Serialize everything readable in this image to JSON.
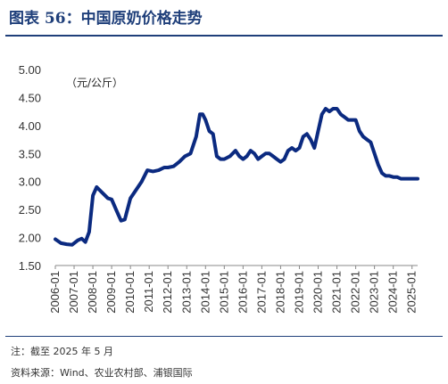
{
  "header": {
    "title": "图表 56：中国原奶价格走势"
  },
  "notes": {
    "note": "注：截至 2025 年 5 月",
    "source": "资料来源：Wind、农业农村部、浦银国际"
  },
  "colors": {
    "line": "#0b2a80",
    "title": "#1f3f7a",
    "axis": "#888888"
  },
  "chart_data": {
    "type": "line",
    "title": "",
    "unit_label": "（元/公斤）",
    "xlabel": "",
    "ylabel": "",
    "ylim": [
      1.5,
      5.0
    ],
    "grid": false,
    "y_ticks": [
      "5.00",
      "4.50",
      "4.00",
      "3.50",
      "3.00",
      "2.50",
      "2.00",
      "1.50"
    ],
    "x_ticks": [
      "2006-01",
      "2007-01",
      "2008-01",
      "2009-01",
      "2010-01",
      "2011-01",
      "2012-01",
      "2013-01",
      "2014-01",
      "2015-01",
      "2016-01",
      "2017-01",
      "2018-01",
      "2019-01",
      "2020-01",
      "2021-01",
      "2022-01",
      "2023-01",
      "2024-01",
      "2025-01"
    ],
    "series": [
      {
        "name": "",
        "x": [
          2006.0,
          2006.3,
          2006.6,
          2006.9,
          2007.2,
          2007.4,
          2007.6,
          2007.8,
          2008.0,
          2008.2,
          2008.5,
          2008.8,
          2009.0,
          2009.3,
          2009.5,
          2009.7,
          2010.0,
          2010.3,
          2010.6,
          2010.9,
          2011.2,
          2011.5,
          2011.8,
          2012.0,
          2012.3,
          2012.6,
          2012.9,
          2013.2,
          2013.5,
          2013.7,
          2013.85,
          2014.0,
          2014.2,
          2014.4,
          2014.6,
          2014.8,
          2015.0,
          2015.3,
          2015.6,
          2015.8,
          2016.0,
          2016.2,
          2016.4,
          2016.6,
          2016.8,
          2017.0,
          2017.2,
          2017.4,
          2017.6,
          2017.8,
          2018.0,
          2018.2,
          2018.4,
          2018.6,
          2018.8,
          2019.0,
          2019.2,
          2019.4,
          2019.6,
          2019.8,
          2020.0,
          2020.2,
          2020.4,
          2020.6,
          2020.8,
          2021.0,
          2021.2,
          2021.4,
          2021.6,
          2021.8,
          2022.0,
          2022.2,
          2022.4,
          2022.6,
          2022.8,
          2023.0,
          2023.2,
          2023.4,
          2023.6,
          2023.8,
          2024.0,
          2024.2,
          2024.4,
          2024.6,
          2024.8,
          2025.0,
          2025.3
        ],
        "y": [
          1.97,
          1.9,
          1.88,
          1.87,
          1.95,
          1.98,
          1.92,
          2.1,
          2.75,
          2.9,
          2.8,
          2.7,
          2.68,
          2.45,
          2.3,
          2.32,
          2.7,
          2.85,
          3.0,
          3.2,
          3.18,
          3.2,
          3.25,
          3.25,
          3.27,
          3.35,
          3.45,
          3.5,
          3.8,
          4.2,
          4.2,
          4.1,
          3.9,
          3.85,
          3.45,
          3.4,
          3.4,
          3.45,
          3.55,
          3.45,
          3.4,
          3.45,
          3.55,
          3.5,
          3.4,
          3.45,
          3.5,
          3.5,
          3.45,
          3.4,
          3.35,
          3.4,
          3.55,
          3.6,
          3.55,
          3.6,
          3.8,
          3.85,
          3.75,
          3.6,
          3.9,
          4.2,
          4.3,
          4.25,
          4.3,
          4.3,
          4.2,
          4.15,
          4.1,
          4.1,
          4.1,
          3.9,
          3.8,
          3.75,
          3.7,
          3.5,
          3.3,
          3.15,
          3.1,
          3.1,
          3.08,
          3.08,
          3.05,
          3.05,
          3.05,
          3.05,
          3.05
        ]
      }
    ]
  }
}
